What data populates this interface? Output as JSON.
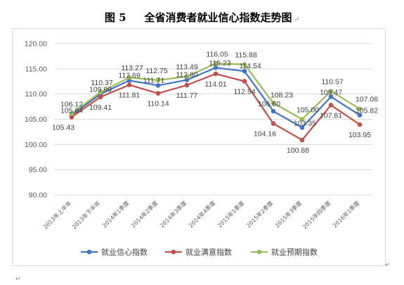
{
  "figure": {
    "number": "图 5",
    "title": "全省消费者就业信心指数走势图",
    "para_mark": "↵"
  },
  "colors": {
    "series": [
      "#4472c4",
      "#c0504d",
      "#9bbb59"
    ],
    "grid": "#d9d9d9",
    "frame": "#d9d9d9"
  },
  "chart_data": {
    "type": "line",
    "title": "",
    "xlabel": "",
    "ylabel": "",
    "ylim": [
      90,
      120
    ],
    "yticks": [
      "90.00",
      "95.00",
      "100.00",
      "105.00",
      "110.00",
      "115.00",
      "120.00"
    ],
    "grid": true,
    "legend_position": "bottom",
    "categories": [
      "2013年上半年",
      "2013年下半年",
      "2014年1季度",
      "2014年2季度",
      "2014年3季度",
      "2014年4季度",
      "2015年1季度",
      "2015年2季度",
      "2015年3季度",
      "2015年四季度",
      "2016年1季度"
    ],
    "series": [
      {
        "name": "就业信心指数",
        "values": [
          105.84,
          109.99,
          112.69,
          111.71,
          112.8,
          115.23,
          114.54,
          106.6,
          103.35,
          109.47,
          105.82
        ]
      },
      {
        "name": "就业满意指数",
        "values": [
          105.43,
          109.41,
          111.81,
          110.14,
          111.77,
          114.01,
          112.54,
          104.16,
          100.88,
          107.81,
          103.95
        ]
      },
      {
        "name": "就业预期指数",
        "values": [
          106.12,
          110.37,
          113.27,
          112.75,
          113.49,
          116.05,
          115.88,
          108.23,
          105.0,
          110.57,
          107.06
        ]
      }
    ],
    "data_labels": {
      "就业信心指数": [
        "105.84",
        "109.99",
        "112.69",
        "111.71",
        "112.80",
        "115.23",
        "114.54",
        "106.60",
        "103.35",
        "109.47",
        "105.82"
      ],
      "就业满意指数": [
        "105.43",
        "109.41",
        "111.81",
        "110.14",
        "111.77",
        "114.01",
        "112.54",
        "104.16",
        "100.88",
        "107.81",
        "103.95"
      ],
      "就业预期指数": [
        "106.12",
        "110.37",
        "113.27",
        "112.75",
        "113.49",
        "116.05",
        "115.88",
        "108.23",
        "105.00",
        "110.57",
        "107.06"
      ]
    }
  }
}
